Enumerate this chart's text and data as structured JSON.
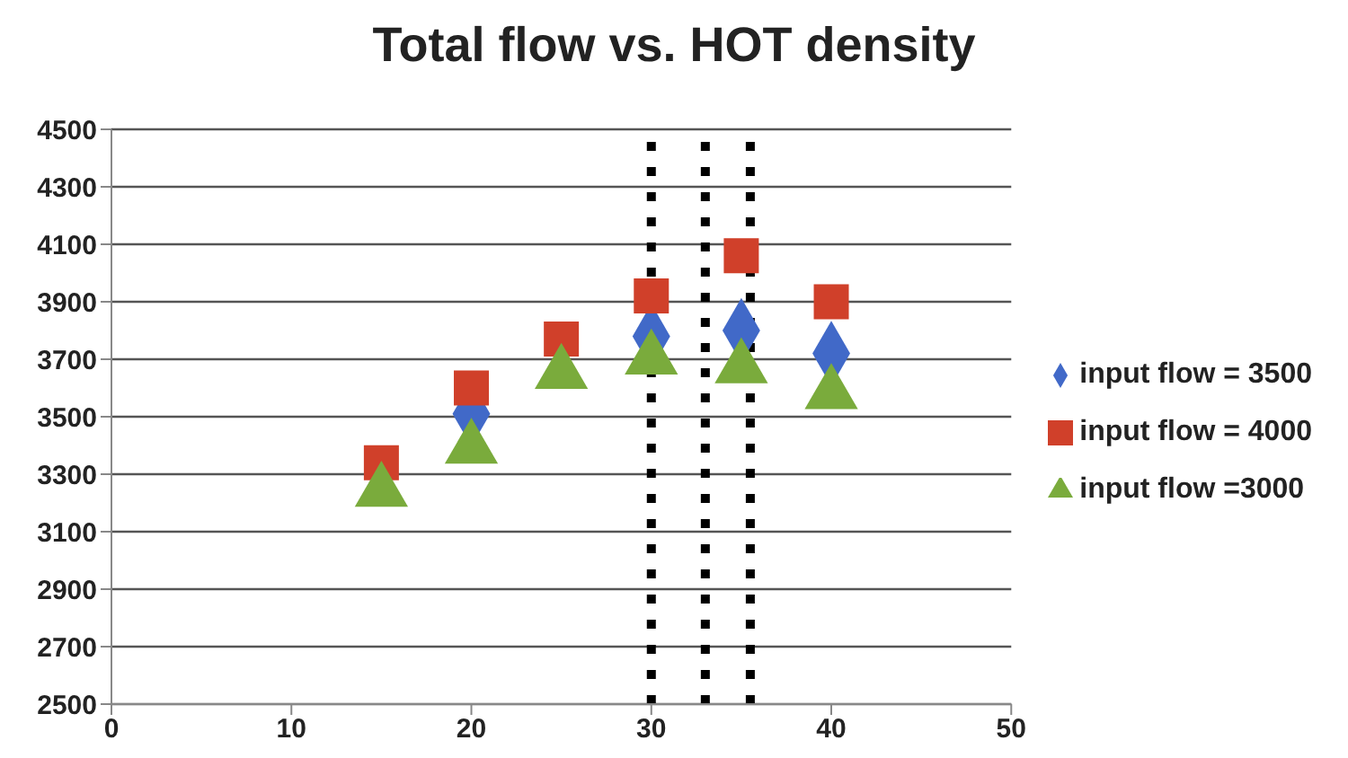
{
  "chart_data": {
    "type": "scatter",
    "title": "Total flow vs. HOT density",
    "x": [
      15,
      20,
      25,
      30,
      35,
      40
    ],
    "series": [
      {
        "name": "input flow = 3500",
        "color": "#4169c8",
        "marker": "diamond",
        "values": [
          null,
          3510,
          null,
          3780,
          3800,
          3720
        ]
      },
      {
        "name": "input flow = 4000",
        "color": "#d0402a",
        "marker": "square",
        "values": [
          3340,
          3600,
          3770,
          3920,
          4060,
          3900
        ]
      },
      {
        "name": "input flow =3000",
        "color": "#7aab3c",
        "marker": "triangle",
        "values": [
          3240,
          3390,
          3650,
          3700,
          3670,
          3580
        ]
      }
    ],
    "xlim": [
      0,
      50
    ],
    "xticks": [
      0,
      10,
      20,
      30,
      40,
      50
    ],
    "ylim": [
      2500,
      4500
    ],
    "yticks": [
      2500,
      2700,
      2900,
      3100,
      3300,
      3500,
      3700,
      3900,
      4100,
      4300,
      4500
    ],
    "grid": "y",
    "legend": "right",
    "ref_lines": [
      {
        "axis": "x",
        "value": 30,
        "color": "#000000",
        "line_style": "dashed"
      },
      {
        "axis": "x",
        "value": 33,
        "color": "#000000",
        "line_style": "dashed"
      },
      {
        "axis": "x",
        "value": 35.5,
        "color": "#000000",
        "line_style": "dashed"
      }
    ]
  }
}
